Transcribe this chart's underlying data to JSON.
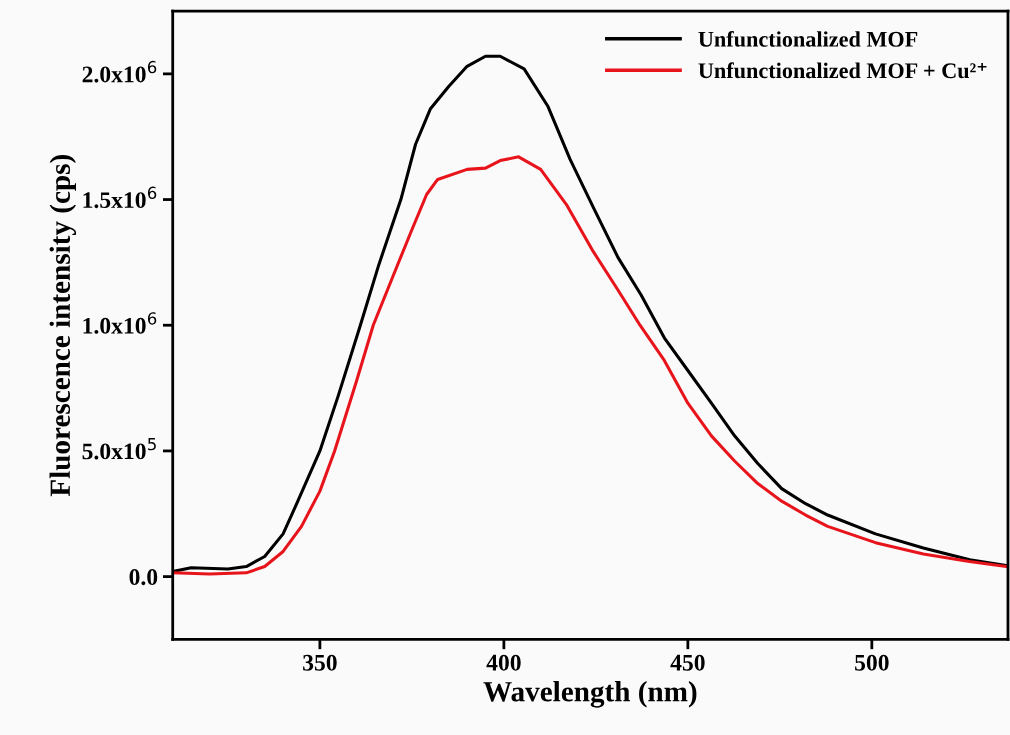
{
  "chart_data": {
    "type": "line",
    "xlabel": "Wavelength (nm)",
    "ylabel": "Fluorescence intensity (cps)",
    "xlim": [
      310,
      537
    ],
    "ylim": [
      -250000,
      2250000
    ],
    "xticks": [
      350,
      400,
      450,
      500
    ],
    "yticks": [
      {
        "value": 0,
        "label": "0.0"
      },
      {
        "value": 500000,
        "label": "5.0x10$^{5}$"
      },
      {
        "value": 1000000,
        "label": "1.0x10$^{6}$"
      },
      {
        "value": 1500000,
        "label": "1.5x10$^{6}$"
      },
      {
        "value": 2000000,
        "label": "2.0x10$^{6}$"
      }
    ],
    "grid": false,
    "legend": "top right",
    "marker": "none",
    "line_style": "solid",
    "series": [
      {
        "name": "Unfunctionalized MOF",
        "color": "#000000",
        "x": [
          310,
          315,
          325,
          330,
          335,
          340,
          344,
          350,
          355,
          361,
          366,
          372,
          376,
          380,
          385,
          390,
          395,
          399,
          405.5,
          412,
          418,
          424.6,
          431,
          437.3,
          443.6,
          450,
          456.4,
          462.7,
          469,
          475.5,
          482,
          488,
          501,
          514,
          526.6,
          537
        ],
        "values": [
          20000,
          35000,
          30000,
          40000,
          80000,
          170000,
          300000,
          500000,
          720000,
          1000000,
          1240000,
          1500000,
          1720000,
          1860000,
          1950000,
          2030000,
          2070000,
          2070000,
          2020000,
          1870000,
          1660000,
          1460000,
          1270000,
          1120000,
          950000,
          820000,
          690000,
          560000,
          450000,
          350000,
          290000,
          245000,
          170000,
          114000,
          67000,
          43000
        ]
      },
      {
        "name": "Unfunctionalized MOF + Cu²⁺",
        "color": "#e8141c",
        "x": [
          310,
          320,
          330,
          335,
          340,
          345,
          350,
          354,
          360,
          364.5,
          370,
          375,
          379,
          382,
          390,
          395,
          399,
          404,
          410,
          417,
          424,
          431,
          437,
          443.6,
          450,
          456.4,
          462.7,
          469,
          475.5,
          482,
          488,
          501,
          514,
          526.5,
          537
        ],
        "values": [
          15000,
          10000,
          15000,
          40000,
          100000,
          200000,
          340000,
          500000,
          780000,
          1000000,
          1200000,
          1380000,
          1520000,
          1580000,
          1620000,
          1625000,
          1655000,
          1670000,
          1620000,
          1480000,
          1300000,
          1140000,
          1000000,
          860000,
          690000,
          560000,
          460000,
          370000,
          300000,
          245000,
          200000,
          135000,
          90000,
          60000,
          39000
        ]
      }
    ]
  }
}
